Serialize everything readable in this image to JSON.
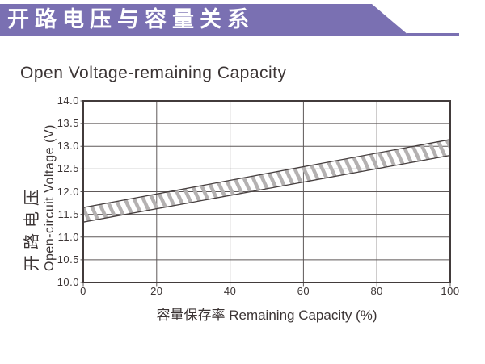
{
  "banner": {
    "title": "开路电压与容量关系",
    "color": "#7a70b2"
  },
  "chart_data": {
    "type": "area",
    "title": "Open Voltage-remaining Capacity",
    "xlabel": "容量保存率 Remaining Capacity (%)",
    "ylabel_cn": "开路电压",
    "ylabel_en": "Open-circuit Voltage (V)",
    "xlim": [
      0,
      100
    ],
    "ylim": [
      10.0,
      14.0
    ],
    "xticks": [
      "0",
      "20",
      "40",
      "60",
      "80",
      "100"
    ],
    "xtick_values": [
      0,
      20,
      40,
      60,
      80,
      100
    ],
    "yticks": [
      "14.0",
      "13.5",
      "13.0",
      "12.5",
      "12.0",
      "11.5",
      "11.0",
      "10.5",
      "10.0"
    ],
    "ytick_values": [
      14.0,
      13.5,
      13.0,
      12.5,
      12.0,
      11.5,
      11.0,
      10.5,
      10.0
    ],
    "grid": true,
    "legend": "none",
    "band": {
      "comment_visible_content": "hatched tolerance band of open-circuit voltage vs remaining capacity",
      "x": [
        0,
        100
      ],
      "upper": [
        11.65,
        13.15
      ],
      "lower": [
        11.33,
        12.8
      ],
      "hatch_style": "backslash-diagonal"
    },
    "colors": {
      "border": "#423b3b",
      "gridline": "#5e5858",
      "band_edge": "#453e3e",
      "hatch": "#b4b1b1",
      "text": "#3b3434"
    }
  }
}
